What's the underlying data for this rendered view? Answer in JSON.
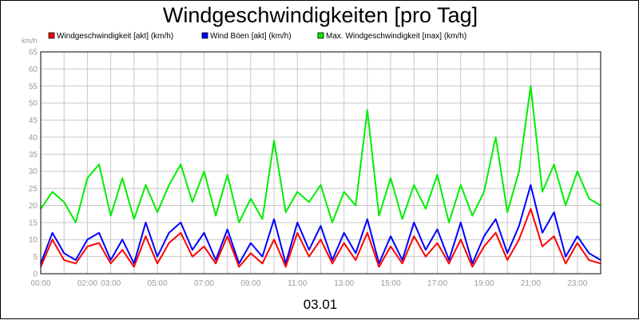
{
  "chart_data": {
    "type": "line",
    "title": "Windgeschwindigkeiten [pro Tag]",
    "ylabel": "km/h",
    "xlabel": "03.01",
    "ylim": [
      0,
      65
    ],
    "yticks": [
      "0",
      "5",
      "10",
      "15",
      "20",
      "25",
      "30",
      "35",
      "40",
      "45",
      "50",
      "55",
      "60",
      "65"
    ],
    "xlim": [
      0,
      24
    ],
    "xticks": [
      {
        "x": 0,
        "label": "00:00"
      },
      {
        "x": 2,
        "label": "02:00"
      },
      {
        "x": 3,
        "label": "03:00"
      },
      {
        "x": 5,
        "label": "05:00"
      },
      {
        "x": 7,
        "label": "07:00"
      },
      {
        "x": 9,
        "label": "09:00"
      },
      {
        "x": 11,
        "label": "11:00"
      },
      {
        "x": 13,
        "label": "13:00"
      },
      {
        "x": 15,
        "label": "15:00"
      },
      {
        "x": 17,
        "label": "17:00"
      },
      {
        "x": 19,
        "label": "19:00"
      },
      {
        "x": 21,
        "label": "21:00"
      },
      {
        "x": 23,
        "label": "23:00"
      }
    ],
    "grid": true,
    "legend_position": "top",
    "x": [
      0,
      0.5,
      1,
      1.5,
      2,
      2.5,
      3,
      3.5,
      4,
      4.5,
      5,
      5.5,
      6,
      6.5,
      7,
      7.5,
      8,
      8.5,
      9,
      9.5,
      10,
      10.5,
      11,
      11.5,
      12,
      12.5,
      13,
      13.5,
      14,
      14.5,
      15,
      15.5,
      16,
      16.5,
      17,
      17.5,
      18,
      18.5,
      19,
      19.5,
      20,
      20.5,
      21,
      21.5,
      22,
      22.5,
      23,
      23.5,
      24
    ],
    "series": [
      {
        "name": "Windgeschwindigkeit [akt] (km/h)",
        "color": "#ff0000",
        "values": [
          2,
          10,
          4,
          3,
          8,
          9,
          3,
          7,
          2,
          11,
          3,
          9,
          12,
          5,
          8,
          3,
          11,
          2,
          6,
          3,
          10,
          2,
          12,
          5,
          10,
          3,
          9,
          4,
          12,
          2,
          8,
          3,
          11,
          5,
          9,
          3,
          10,
          2,
          8,
          12,
          4,
          10,
          19,
          8,
          11,
          3,
          9,
          4,
          3
        ]
      },
      {
        "name": "Wind Böen [akt] (km/h)",
        "color": "#0000ff",
        "values": [
          3,
          12,
          6,
          4,
          10,
          12,
          4,
          10,
          3,
          15,
          5,
          12,
          15,
          7,
          12,
          4,
          13,
          3,
          9,
          5,
          16,
          3,
          15,
          7,
          14,
          4,
          12,
          6,
          16,
          3,
          11,
          4,
          15,
          7,
          13,
          4,
          15,
          3,
          11,
          16,
          6,
          14,
          26,
          12,
          18,
          5,
          11,
          6,
          4
        ]
      },
      {
        "name": "Max. Windgeschwindigkeit [max] (km/h)",
        "color": "#00ee00",
        "values": [
          19,
          24,
          21,
          15,
          28,
          32,
          17,
          28,
          16,
          26,
          18,
          26,
          32,
          21,
          30,
          17,
          29,
          15,
          22,
          16,
          39,
          18,
          24,
          21,
          26,
          15,
          24,
          20,
          48,
          17,
          28,
          16,
          26,
          19,
          29,
          15,
          26,
          17,
          24,
          40,
          18,
          30,
          55,
          24,
          32,
          20,
          30,
          22,
          20
        ]
      }
    ]
  }
}
